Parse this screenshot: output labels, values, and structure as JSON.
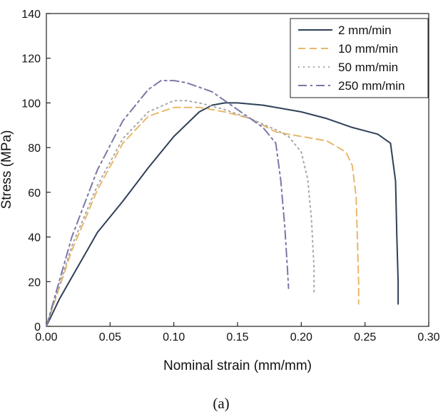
{
  "chart_data": {
    "type": "line",
    "title": "",
    "xlabel": "Nominal strain (mm/mm)",
    "ylabel": "Stress (MPa)",
    "xlim": [
      0.0,
      0.3
    ],
    "ylim": [
      0,
      140
    ],
    "x_ticks": [
      "0.00",
      "0.05",
      "0.10",
      "0.15",
      "0.20",
      "0.25",
      "0.30"
    ],
    "y_ticks": [
      "0",
      "20",
      "40",
      "60",
      "80",
      "100",
      "120",
      "140"
    ],
    "grid": false,
    "legend_position": "top-right",
    "caption": "(a)",
    "series": [
      {
        "name": "2 mm/min",
        "color": "#2e4057",
        "dash": "solid",
        "x": [
          0.0,
          0.01,
          0.02,
          0.03,
          0.04,
          0.06,
          0.08,
          0.1,
          0.12,
          0.13,
          0.14,
          0.15,
          0.17,
          0.2,
          0.22,
          0.24,
          0.26,
          0.27,
          0.274,
          0.275,
          0.276,
          0.276
        ],
        "y": [
          0,
          12,
          22,
          32,
          42,
          56,
          71,
          85,
          96,
          99,
          100,
          100,
          99,
          96,
          93,
          89,
          86,
          82,
          65,
          40,
          20,
          10
        ]
      },
      {
        "name": "10 mm/min",
        "color": "#e8b86a",
        "dash": "dashed",
        "x": [
          0.0,
          0.02,
          0.04,
          0.06,
          0.08,
          0.1,
          0.12,
          0.14,
          0.16,
          0.18,
          0.2,
          0.22,
          0.235,
          0.24,
          0.243,
          0.244,
          0.245,
          0.245
        ],
        "y": [
          0,
          34,
          61,
          82,
          94,
          98,
          98,
          96,
          93,
          87,
          85,
          83,
          78,
          72,
          58,
          40,
          20,
          10
        ]
      },
      {
        "name": "50 mm/min",
        "color": "#a8a8a8",
        "dash": "dotted",
        "x": [
          0.0,
          0.02,
          0.04,
          0.06,
          0.08,
          0.1,
          0.11,
          0.12,
          0.14,
          0.16,
          0.18,
          0.19,
          0.2,
          0.205,
          0.208,
          0.21,
          0.21
        ],
        "y": [
          0,
          36,
          63,
          84,
          96,
          101,
          101,
          100,
          97,
          93,
          88,
          85,
          78,
          66,
          48,
          26,
          14
        ]
      },
      {
        "name": "250 mm/min",
        "color": "#7a78a6",
        "dash": "dashdot",
        "x": [
          0.0,
          0.02,
          0.04,
          0.06,
          0.08,
          0.09,
          0.1,
          0.11,
          0.13,
          0.15,
          0.17,
          0.18,
          0.184,
          0.187,
          0.189,
          0.19
        ],
        "y": [
          0,
          40,
          70,
          92,
          106,
          110,
          110,
          109,
          105,
          97,
          89,
          82,
          65,
          45,
          27,
          17
        ]
      }
    ]
  }
}
